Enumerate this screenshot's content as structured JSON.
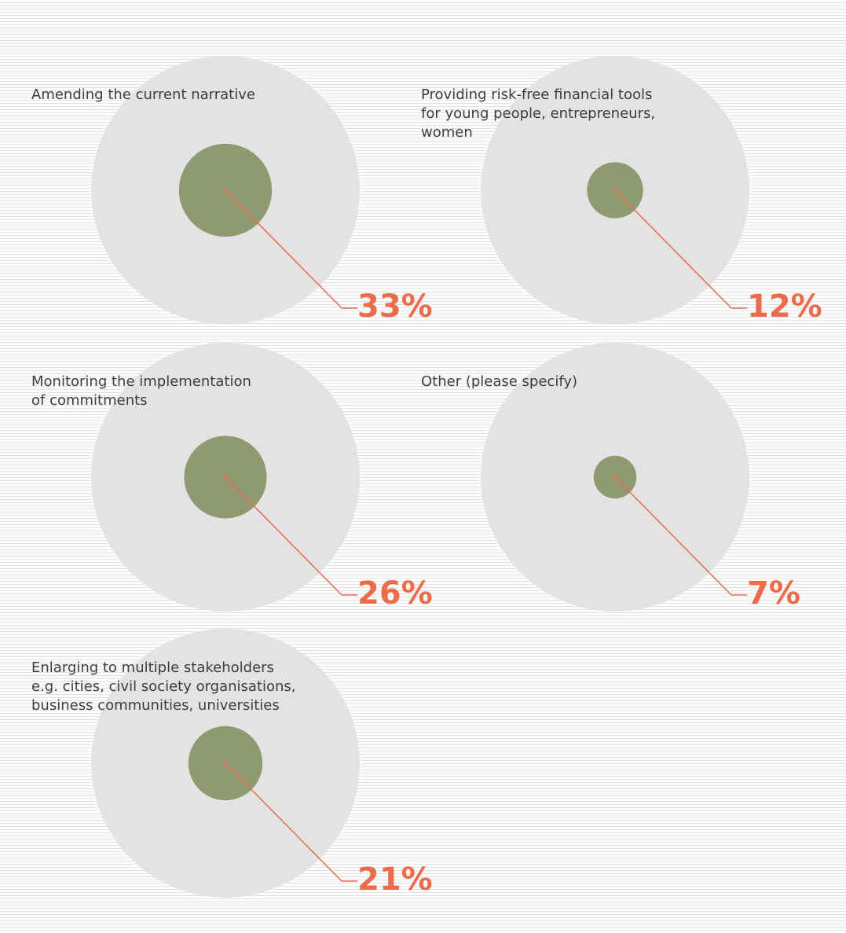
{
  "chart_data": {
    "type": "bubble",
    "unit": "%",
    "items": [
      {
        "label": "Amending the current narrative",
        "value": 33
      },
      {
        "label": "Providing risk-free financial tools\nfor young people, entrepreneurs,\nwomen",
        "value": 12
      },
      {
        "label": "Monitoring the implementation\nof commitments",
        "value": 26
      },
      {
        "label": "Other (please specify)",
        "value": 7
      },
      {
        "label": "Enlarging to multiple stakeholders\ne.g. cities, civil society organisations,\nbusiness communities, universities",
        "value": 21
      }
    ]
  },
  "colors": {
    "outer_circle": "#e3e3e4",
    "inner_circle": "#8f9a70",
    "accent": "#ec6b4b",
    "label_text": "#3d3d3d"
  }
}
